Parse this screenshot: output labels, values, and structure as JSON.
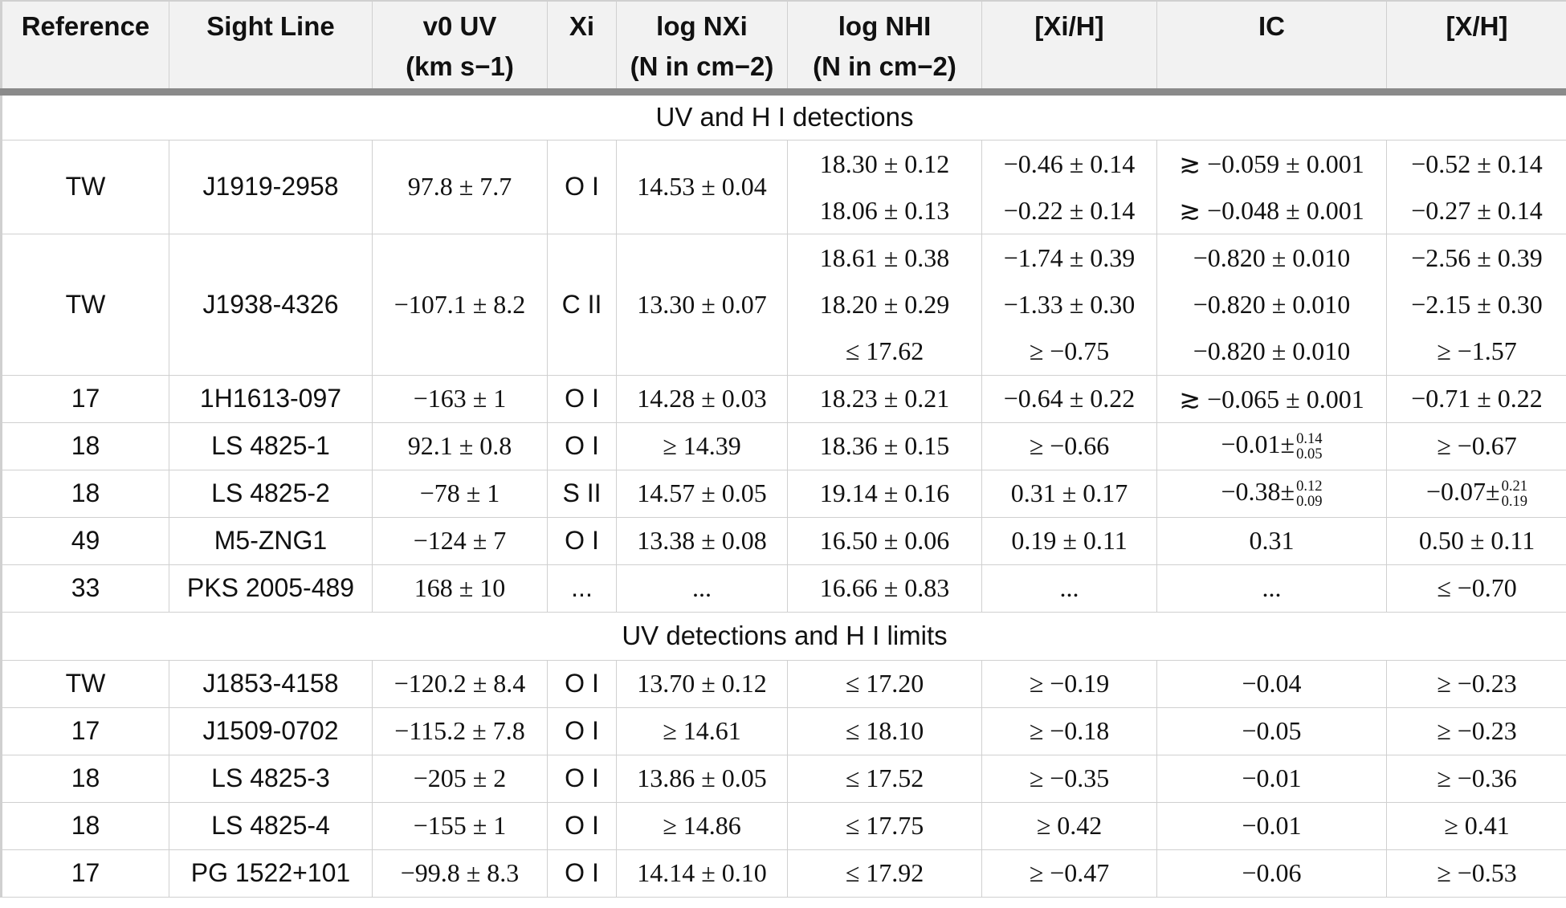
{
  "headers": {
    "reference": "Reference",
    "sight_line": "Sight Line",
    "v0uv_line1": "v0 UV",
    "v0uv_line2": "(km s−1)",
    "ion": "Xi",
    "logNX_line1": "log NXi",
    "logNX_line2": "(N in cm−2)",
    "logNHI_line1": "log NHI",
    "logNHI_line2": "(N in cm−2)",
    "xi_h": "[Xi/H]",
    "ic": "IC",
    "x_h": "[X/H]"
  },
  "sections": [
    {
      "title": "UV and H I detections"
    },
    {
      "title": "UV detections and H I limits"
    }
  ],
  "rows_uvhi": [
    {
      "ref": "TW",
      "sight": "J1919-2958",
      "v0": "97.8 ± 7.7",
      "ion": "O I",
      "logNX": "14.53 ± 0.04",
      "logNHI": [
        "18.30 ± 0.12",
        "18.06 ± 0.13"
      ],
      "xih": [
        "−0.46 ± 0.14",
        "−0.22 ± 0.14"
      ],
      "ic": [
        "≳ −0.059 ± 0.001",
        "≳ −0.048 ± 0.001"
      ],
      "xh": [
        "−0.52 ± 0.14",
        "−0.27 ± 0.14"
      ]
    },
    {
      "ref": "TW",
      "sight": "J1938-4326",
      "v0": "−107.1 ± 8.2",
      "ion": "C II",
      "logNX": "13.30 ± 0.07",
      "logNHI": [
        "18.61 ± 0.38",
        "18.20 ± 0.29",
        "≤ 17.62"
      ],
      "xih": [
        "−1.74 ± 0.39",
        "−1.33 ± 0.30",
        "≥ −0.75"
      ],
      "ic": [
        "−0.820 ± 0.010",
        "−0.820 ± 0.010",
        "−0.820 ± 0.010"
      ],
      "xh": [
        "−2.56 ± 0.39",
        "−2.15 ± 0.30",
        "≥ −1.57"
      ]
    },
    {
      "ref": "17",
      "sight": "1H1613-097",
      "v0": "−163 ± 1",
      "ion": "O I",
      "logNX": "14.28 ± 0.03",
      "logNHI": "18.23 ± 0.21",
      "xih": "−0.64 ± 0.22",
      "ic": "≳ −0.065 ± 0.001",
      "xh": "−0.71 ± 0.22"
    },
    {
      "ref": "18",
      "sight": "LS 4825-1",
      "v0": "92.1 ± 0.8",
      "ion": "O I",
      "logNX": "≥ 14.39",
      "logNHI": "18.36 ± 0.15",
      "xih": "≥ −0.66",
      "ic_base": "−0.01±",
      "ic_up": "0.14",
      "ic_dn": "0.05",
      "xh": "≥ −0.67"
    },
    {
      "ref": "18",
      "sight": "LS 4825-2",
      "v0": "−78 ± 1",
      "ion": "S II",
      "logNX": "14.57 ± 0.05",
      "logNHI": "19.14 ± 0.16",
      "xih": "0.31 ± 0.17",
      "ic_base": "−0.38±",
      "ic_up": "0.12",
      "ic_dn": "0.09",
      "xh_base": "−0.07±",
      "xh_up": "0.21",
      "xh_dn": "0.19"
    },
    {
      "ref": "49",
      "sight": "M5-ZNG1",
      "v0": "−124 ± 7",
      "ion": "O I",
      "logNX": "13.38 ± 0.08",
      "logNHI": "16.50 ± 0.06",
      "xih": "0.19 ± 0.11",
      "ic": "0.31",
      "xh": "0.50 ± 0.11"
    },
    {
      "ref": "33",
      "sight": "PKS 2005-489",
      "v0": "168 ± 10",
      "ion": "...",
      "logNX": "...",
      "logNHI": "16.66 ± 0.83",
      "xih": "...",
      "ic": "...",
      "xh": "≤ −0.70"
    }
  ],
  "rows_uvlim": [
    {
      "ref": "TW",
      "sight": "J1853-4158",
      "v0": "−120.2 ± 8.4",
      "ion": "O I",
      "logNX": "13.70 ± 0.12",
      "logNHI": "≤ 17.20",
      "xih": "≥ −0.19",
      "ic": "−0.04",
      "xh": "≥ −0.23"
    },
    {
      "ref": "17",
      "sight": "J1509-0702",
      "v0": "−115.2 ± 7.8",
      "ion": "O I",
      "logNX": "≥ 14.61",
      "logNHI": "≤ 18.10",
      "xih": "≥ −0.18",
      "ic": "−0.05",
      "xh": "≥ −0.23"
    },
    {
      "ref": "18",
      "sight": "LS 4825-3",
      "v0": "−205 ± 2",
      "ion": "O I",
      "logNX": "13.86 ± 0.05",
      "logNHI": "≤ 17.52",
      "xih": "≥ −0.35",
      "ic": "−0.01",
      "xh": "≥ −0.36"
    },
    {
      "ref": "18",
      "sight": "LS 4825-4",
      "v0": "−155 ± 1",
      "ion": "O I",
      "logNX": "≥ 14.86",
      "logNHI": "≤ 17.75",
      "xih": "≥ 0.42",
      "ic": "−0.01",
      "xh": "≥ 0.41"
    },
    {
      "ref": "17",
      "sight": "PG 1522+101",
      "v0": "−99.8 ± 8.3",
      "ion": "O I",
      "logNX": "14.14 ± 0.10",
      "logNHI": "≤ 17.92",
      "xih": "≥ −0.47",
      "ic": "−0.06",
      "xh": "≥ −0.53"
    }
  ]
}
